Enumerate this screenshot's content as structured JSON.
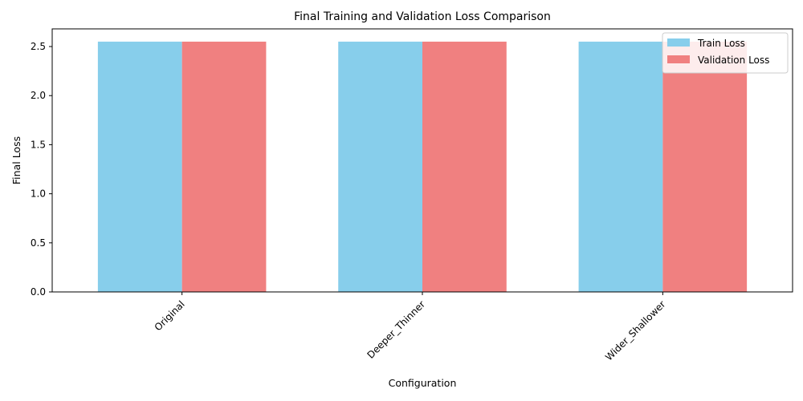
{
  "chart_data": {
    "type": "bar",
    "title": "Final Training and Validation Loss Comparison",
    "xlabel": "Configuration",
    "ylabel": "Final Loss",
    "categories": [
      "Original",
      "Deeper_Thinner",
      "Wider_Shallower"
    ],
    "series": [
      {
        "name": "Train Loss",
        "values": [
          2.55,
          2.55,
          2.55
        ],
        "color": "#87CEEB"
      },
      {
        "name": "Validation Loss",
        "values": [
          2.55,
          2.55,
          2.55
        ],
        "color": "#F08080"
      }
    ],
    "ylim": [
      0,
      2.68
    ],
    "yticks": [
      0.0,
      0.5,
      1.0,
      1.5,
      2.0,
      2.5
    ],
    "ytick_labels": [
      "0.0",
      "0.5",
      "1.0",
      "1.5",
      "2.0",
      "2.5"
    ],
    "grid": false,
    "legend_position": "top-right",
    "xtick_rotation_deg": 45
  }
}
